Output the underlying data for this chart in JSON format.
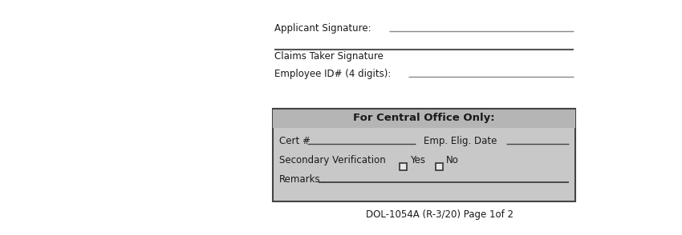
{
  "bg_color": "#ffffff",
  "text_color": "#1a1a1a",
  "gray_box_color": "#c8c8c8",
  "gray_title_color": "#b5b5b5",
  "line_color": "#888888",
  "dark_line_color": "#555555",
  "applicant_sig_label": "Applicant Signature:",
  "claims_taker_label": "Claims Taker Signature",
  "employee_id_label": "Employee ID# (4 digits):",
  "box_title": "For Central Office Only:",
  "cert_label": "Cert #",
  "emp_elig_label": "Emp. Elig. Date",
  "secondary_label": "Secondary Verification",
  "yes_label": "Yes",
  "no_label": "No",
  "remarks_label": "Remarks",
  "footer": "DOL-1054A (R-3/20) Page 1of 2",
  "main_font_size": 8.5,
  "bold_font_size": 9.5,
  "footer_font_size": 8.5
}
